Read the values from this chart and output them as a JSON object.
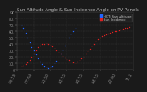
{
  "title": "Sun Altitude Angle & Sun Incidence Angle on PV Panels",
  "bg_color": "#1a1a1a",
  "plot_bg_color": "#1a1a1a",
  "grid_color": "#444444",
  "blue_color": "#2266ff",
  "red_color": "#dd2222",
  "ylim": [
    0,
    90
  ],
  "xlim": [
    0,
    28
  ],
  "blue_x": [
    1.0,
    1.5,
    2.0,
    2.5,
    3.0,
    3.5,
    4.0,
    4.5,
    5.0,
    5.5,
    6.0,
    6.5,
    7.0,
    7.5,
    8.0,
    8.5,
    9.0,
    9.5,
    10.0,
    10.5,
    11.0,
    11.5,
    12.0,
    12.5,
    13.0,
    13.5,
    14.0
  ],
  "blue_y": [
    70,
    65,
    58,
    50,
    43,
    36,
    30,
    24,
    18,
    13,
    9,
    6,
    4,
    3,
    4,
    6,
    10,
    14,
    19,
    25,
    31,
    38,
    44,
    50,
    56,
    61,
    65
  ],
  "red_x": [
    1.0,
    1.5,
    2.0,
    2.5,
    3.0,
    3.5,
    4.0,
    4.5,
    5.0,
    5.5,
    6.0,
    6.5,
    7.0,
    7.5,
    8.0,
    8.5,
    9.0,
    9.5,
    10.0,
    10.5,
    11.0,
    11.5,
    12.0,
    12.5,
    13.0,
    13.5,
    14.0,
    14.5,
    15.0,
    15.5,
    16.0,
    16.5,
    17.0,
    17.5,
    18.0,
    18.5,
    19.0,
    19.5,
    20.0,
    20.5,
    21.0,
    21.5,
    22.0,
    22.5,
    23.0,
    23.5,
    24.0,
    24.5,
    25.0,
    25.5,
    26.0,
    26.5,
    27.0
  ],
  "red_y": [
    5,
    7,
    9,
    12,
    16,
    20,
    25,
    30,
    35,
    38,
    40,
    41,
    42,
    41,
    39,
    37,
    34,
    31,
    28,
    25,
    22,
    19,
    17,
    15,
    13,
    12,
    11,
    13,
    15,
    18,
    21,
    25,
    29,
    33,
    37,
    41,
    45,
    48,
    51,
    53,
    54,
    56,
    57,
    58,
    59,
    60,
    61,
    62,
    63,
    64,
    65,
    66,
    67
  ],
  "legend_blue": "HOT: Sun Altitude",
  "legend_red": "Sun Incidence",
  "tick_fontsize": 3.5,
  "title_fontsize": 4.0,
  "marker_size": 1.0,
  "x_ticks": [
    0,
    4,
    8,
    12,
    16,
    20,
    24,
    28
  ],
  "x_tick_labels": [
    "04:15",
    "07:44",
    "10:59",
    "13:15",
    "16:15",
    "19:15",
    "22:00",
    "To 1"
  ],
  "y_ticks": [
    0,
    10,
    20,
    30,
    40,
    50,
    60,
    70,
    80,
    90
  ],
  "y_tick_labels": [
    "0",
    "10.",
    "20.",
    "30.",
    "40.",
    "50.",
    "60.",
    "70.",
    "80.",
    "90"
  ]
}
